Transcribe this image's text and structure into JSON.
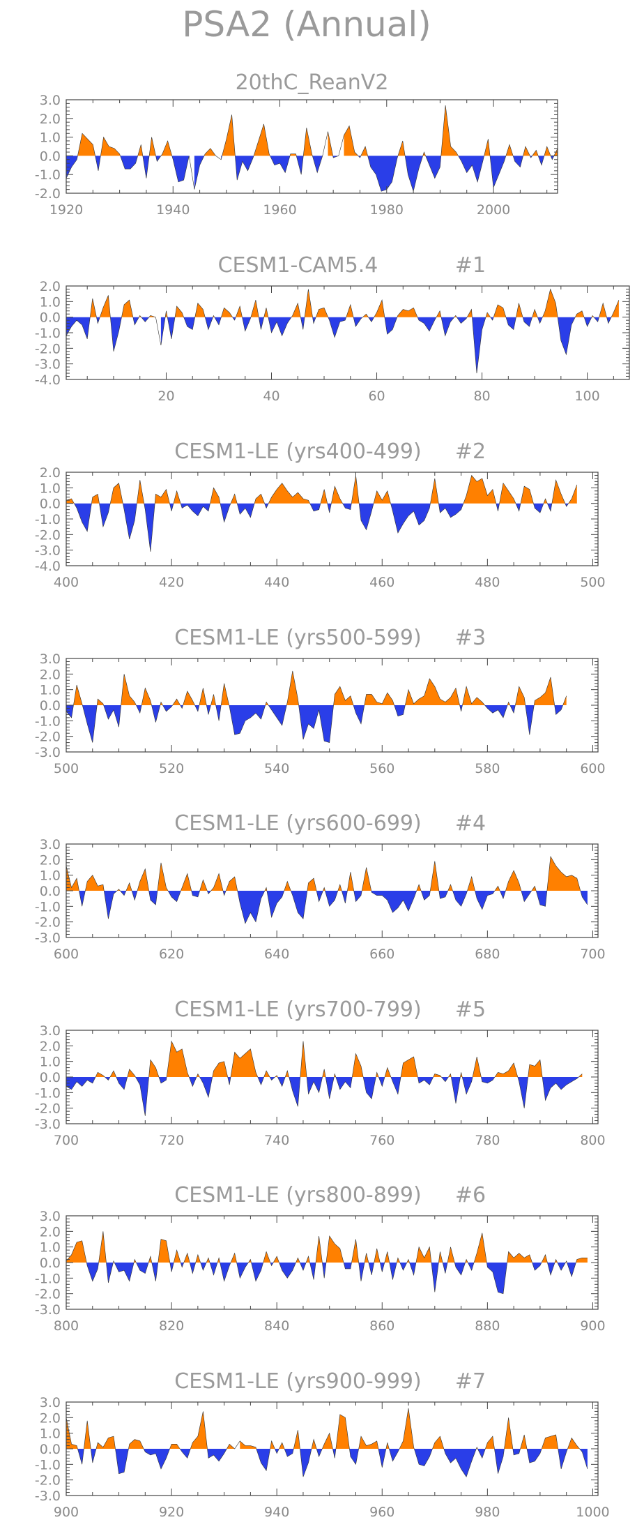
{
  "figure_title": "PSA2 (Annual)",
  "colors": {
    "positive": "#ff8000",
    "negative": "#2a3ee8",
    "text": "#9a9a9a",
    "axis": "#444444"
  },
  "chart_data": [
    {
      "type": "area",
      "title": "20thC_ReanV2",
      "run_label": "",
      "ylim": [
        -2.0,
        3.0
      ],
      "yticks": [
        "3.0",
        "2.0",
        "1.0",
        "0.0",
        "-1.0",
        "-2.0"
      ],
      "xlim": [
        1920,
        2012
      ],
      "xticks": [
        1920,
        1940,
        1960,
        1980,
        2000
      ],
      "x_start": 1920,
      "values": [
        -1.2,
        -0.6,
        -0.2,
        1.2,
        0.9,
        0.6,
        -0.8,
        1.0,
        0.5,
        0.4,
        0.1,
        -0.7,
        -0.7,
        -0.4,
        0.6,
        -1.2,
        1.0,
        -0.3,
        0.1,
        0.8,
        -0.2,
        -1.4,
        -1.3,
        0.0,
        -1.8,
        -0.5,
        0.1,
        0.4,
        0.0,
        -0.2,
        0.9,
        2.2,
        -1.3,
        -0.3,
        -0.8,
        -0.1,
        0.8,
        1.7,
        0.1,
        -0.5,
        -0.4,
        -0.9,
        0.1,
        0.1,
        -1.0,
        1.5,
        0.1,
        -0.9,
        0.0,
        1.3,
        -0.1,
        0.0,
        1.1,
        1.6,
        0.2,
        -0.1,
        0.5,
        -0.6,
        -1.0,
        -1.9,
        -1.8,
        -1.4,
        -0.1,
        0.8,
        -1.0,
        -1.9,
        -0.7,
        0.2,
        -0.5,
        -1.2,
        -0.6,
        2.7,
        0.5,
        0.2,
        -0.3,
        -0.9,
        -0.5,
        -1.4,
        -0.3,
        0.9,
        -1.7,
        -1.0,
        -0.3,
        0.6,
        -0.3,
        -0.6,
        0.5,
        -0.1,
        0.3,
        -0.5,
        0.5,
        -0.2,
        0.4
      ]
    },
    {
      "type": "area",
      "title": "CESM1-CAM5.4",
      "run_label": "#1",
      "ylim": [
        -4.0,
        2.0
      ],
      "yticks": [
        "2.0",
        "1.0",
        "0.0",
        "-1.0",
        "-2.0",
        "-3.0",
        "-4.0"
      ],
      "xlim": [
        1,
        108
      ],
      "xticks": [
        20,
        40,
        60,
        80,
        100
      ],
      "x_start": 1,
      "values": [
        -1.2,
        -0.6,
        -0.2,
        -0.5,
        -1.4,
        1.2,
        -0.4,
        0.6,
        1.4,
        -2.2,
        -0.9,
        0.8,
        1.1,
        -0.5,
        0.1,
        -0.3,
        0.1,
        0.0,
        -1.8,
        0.4,
        -1.4,
        0.7,
        0.3,
        -0.6,
        -0.8,
        0.9,
        0.5,
        -0.8,
        0.1,
        -0.5,
        0.6,
        0.3,
        -0.2,
        0.7,
        -0.9,
        -0.1,
        1.1,
        -0.8,
        0.6,
        -1.0,
        -0.3,
        -1.2,
        -0.4,
        0.1,
        0.9,
        -0.8,
        1.8,
        -0.4,
        0.5,
        0.6,
        -0.2,
        -1.3,
        -0.3,
        -0.2,
        0.8,
        -0.6,
        -0.1,
        0.2,
        -0.3,
        0.3,
        1.1,
        -1.1,
        -0.8,
        0.1,
        0.5,
        0.4,
        0.6,
        -0.2,
        -0.4,
        -0.9,
        -0.2,
        0.4,
        -1.2,
        -0.3,
        0.1,
        -0.4,
        -0.1,
        0.5,
        -3.6,
        -0.8,
        0.3,
        -0.2,
        0.8,
        0.6,
        -0.5,
        -0.8,
        0.9,
        -0.3,
        -0.6,
        0.5,
        -0.4,
        0.4,
        1.8,
        0.9,
        -1.5,
        -2.4,
        -0.5,
        0.2,
        0.4,
        -0.6,
        0.1,
        -0.3,
        0.9,
        -0.4,
        0.3,
        1.1
      ]
    },
    {
      "type": "area",
      "title": "CESM1-LE (yrs400-499)",
      "run_label": "#2",
      "ylim": [
        -4.0,
        2.0
      ],
      "yticks": [
        "2.0",
        "1.0",
        "0.0",
        "-1.0",
        "-2.0",
        "-3.0",
        "-4.0"
      ],
      "xlim": [
        400,
        501
      ],
      "xticks": [
        400,
        420,
        440,
        460,
        480,
        500
      ],
      "x_start": 400,
      "values": [
        0.2,
        0.3,
        -0.3,
        -1.2,
        -1.8,
        0.4,
        0.6,
        -1.5,
        -0.6,
        1.0,
        1.3,
        -0.4,
        -2.3,
        -1.1,
        1.5,
        -0.4,
        -3.1,
        0.6,
        0.4,
        0.9,
        -0.5,
        0.8,
        -0.3,
        -0.1,
        -0.5,
        -0.8,
        -0.2,
        -0.5,
        1.0,
        0.4,
        -1.2,
        -0.2,
        0.6,
        -0.7,
        -0.3,
        -0.9,
        0.3,
        0.6,
        -0.3,
        0.4,
        0.9,
        1.3,
        0.8,
        0.4,
        0.7,
        0.3,
        0.2,
        -0.5,
        -0.4,
        0.9,
        -0.6,
        1.1,
        0.3,
        -0.3,
        -0.4,
        1.8,
        -1.1,
        -1.7,
        -0.5,
        0.8,
        0.2,
        0.8,
        -0.5,
        -1.9,
        -1.3,
        -0.8,
        -0.5,
        -1.4,
        -1.1,
        -0.3,
        1.6,
        -0.6,
        -0.3,
        -0.9,
        -0.7,
        -0.4,
        0.5,
        1.8,
        1.4,
        1.6,
        0.5,
        0.9,
        -0.5,
        1.3,
        0.8,
        0.3,
        -0.5,
        1.1,
        0.9,
        -0.3,
        -0.6,
        0.3,
        -0.5,
        1.5,
        0.6,
        -0.2,
        0.3,
        1.2
      ]
    },
    {
      "type": "area",
      "title": "CESM1-LE (yrs500-599)",
      "run_label": "#3",
      "ylim": [
        -3.0,
        3.0
      ],
      "yticks": [
        "3.0",
        "2.0",
        "1.0",
        "0.0",
        "-1.0",
        "-2.0",
        "-3.0"
      ],
      "xlim": [
        500,
        601
      ],
      "xticks": [
        500,
        520,
        540,
        560,
        580,
        600
      ],
      "x_start": 500,
      "values": [
        -0.4,
        -0.8,
        1.3,
        0.1,
        -1.2,
        -2.4,
        0.4,
        0.1,
        -0.9,
        -0.3,
        -1.4,
        2.0,
        0.6,
        0.2,
        -0.5,
        1.1,
        0.3,
        -1.1,
        0.2,
        -0.4,
        -0.1,
        0.4,
        -0.2,
        0.9,
        0.3,
        -0.4,
        1.1,
        -0.6,
        0.7,
        -1.0,
        1.4,
        -0.1,
        -1.9,
        -1.8,
        -1.0,
        -0.8,
        -0.5,
        -0.9,
        0.2,
        -0.3,
        -0.8,
        -1.3,
        0.2,
        2.2,
        0.4,
        -2.2,
        -1.2,
        -1.5,
        -0.3,
        -2.3,
        -2.4,
        0.7,
        1.2,
        0.3,
        0.6,
        -0.5,
        -1.2,
        0.7,
        0.7,
        0.2,
        0.1,
        0.8,
        0.3,
        -0.7,
        -0.6,
        1.0,
        0.1,
        0.4,
        0.6,
        1.7,
        1.2,
        0.4,
        0.2,
        0.5,
        1.1,
        -0.4,
        1.2,
        0.1,
        0.5,
        0.2,
        -0.2,
        -0.5,
        -0.3,
        -0.8,
        0.2,
        -0.5,
        1.2,
        0.5,
        -1.9,
        0.3,
        0.5,
        0.8,
        1.8,
        -0.6,
        -0.3,
        0.6
      ]
    },
    {
      "type": "area",
      "title": "CESM1-LE (yrs600-699)",
      "run_label": "#4",
      "ylim": [
        -3.0,
        3.0
      ],
      "yticks": [
        "3.0",
        "2.0",
        "1.0",
        "0.0",
        "-1.0",
        "-2.0",
        "-3.0"
      ],
      "xlim": [
        600,
        701
      ],
      "xticks": [
        600,
        620,
        640,
        660,
        680,
        700
      ],
      "x_start": 600,
      "values": [
        1.6,
        0.2,
        0.8,
        -1.0,
        0.6,
        1.0,
        0.3,
        0.4,
        -1.8,
        -0.2,
        0.1,
        -0.3,
        0.5,
        -0.6,
        0.6,
        1.4,
        -0.6,
        -0.9,
        1.8,
        0.2,
        -0.4,
        -0.7,
        0.2,
        1.1,
        -0.3,
        -0.4,
        0.7,
        -0.2,
        0.2,
        1.1,
        -0.3,
        0.6,
        0.9,
        -0.8,
        -2.1,
        -1.4,
        -2.0,
        -0.5,
        0.2,
        -1.7,
        -0.8,
        -0.4,
        0.6,
        -0.3,
        -1.4,
        -1.8,
        0.5,
        0.8,
        -0.7,
        0.2,
        -1.0,
        -0.6,
        0.4,
        -0.8,
        1.2,
        -0.7,
        -0.3,
        1.5,
        -0.1,
        -0.3,
        -0.3,
        -0.6,
        -1.4,
        -1.1,
        -0.6,
        -1.3,
        -0.5,
        0.4,
        -0.6,
        -0.3,
        1.9,
        -0.5,
        -0.4,
        0.4,
        -0.6,
        -1.0,
        -0.2,
        0.9,
        -0.5,
        -1.2,
        -0.3,
        -0.2,
        0.3,
        -0.5,
        0.6,
        1.3,
        0.5,
        -0.7,
        -0.2,
        0.3,
        -0.9,
        -1.0,
        2.2,
        1.6,
        1.2,
        0.9,
        1.0,
        0.8,
        -0.4,
        -0.9
      ]
    },
    {
      "type": "area",
      "title": "CESM1-LE (yrs700-799)",
      "run_label": "#5",
      "ylim": [
        -3.0,
        3.0
      ],
      "yticks": [
        "3.0",
        "2.0",
        "1.0",
        "0.0",
        "-1.0",
        "-2.0",
        "-3.0"
      ],
      "xlim": [
        700,
        801
      ],
      "xticks": [
        700,
        720,
        740,
        760,
        780,
        800
      ],
      "x_start": 700,
      "values": [
        -0.6,
        -0.8,
        -0.3,
        -0.6,
        -0.2,
        -0.4,
        0.3,
        0.1,
        -0.2,
        0.4,
        -0.4,
        -0.8,
        0.5,
        0.1,
        -0.5,
        -2.5,
        1.1,
        0.6,
        -0.4,
        -0.2,
        2.3,
        1.6,
        1.8,
        0.3,
        -0.6,
        0.2,
        -0.4,
        -1.3,
        0.4,
        0.9,
        1.0,
        -0.5,
        1.6,
        1.2,
        1.5,
        1.8,
        0.3,
        -0.5,
        0.4,
        -0.2,
        0.1,
        -0.6,
        0.4,
        -0.9,
        -1.9,
        2.3,
        -1.1,
        -0.3,
        -1.0,
        0.5,
        -1.4,
        0.2,
        -0.8,
        -0.3,
        -0.7,
        1.5,
        0.7,
        -1.0,
        -1.4,
        0.3,
        -0.6,
        0.6,
        -0.3,
        -1.1,
        0.9,
        1.1,
        1.3,
        -0.4,
        -0.2,
        -0.5,
        0.2,
        0.1,
        -0.3,
        0.2,
        -1.7,
        0.3,
        -1.1,
        -0.3,
        1.3,
        -0.3,
        -0.4,
        -0.2,
        0.3,
        0.2,
        0.4,
        0.9,
        -0.3,
        -2.0,
        0.8,
        0.7,
        1.1,
        -1.5,
        -0.7,
        -0.4,
        -0.8,
        -0.5,
        -0.3,
        -0.1,
        0.2
      ]
    },
    {
      "type": "area",
      "title": "CESM1-LE (yrs800-899)",
      "run_label": "#6",
      "ylim": [
        -3.0,
        3.0
      ],
      "yticks": [
        "3.0",
        "2.0",
        "1.0",
        "0.0",
        "-1.0",
        "-2.0",
        "-3.0"
      ],
      "xlim": [
        800,
        901
      ],
      "xticks": [
        800,
        820,
        840,
        860,
        880,
        900
      ],
      "x_start": 800,
      "values": [
        0.1,
        0.5,
        1.3,
        1.4,
        -0.2,
        -1.2,
        -0.4,
        2.0,
        -1.3,
        0.1,
        -0.6,
        -0.5,
        -1.2,
        0.2,
        -0.5,
        -0.7,
        0.4,
        -1.2,
        1.5,
        1.4,
        -0.6,
        0.8,
        -0.3,
        0.6,
        -0.7,
        0.5,
        -0.5,
        0.3,
        -0.8,
        0.3,
        -1.2,
        -0.2,
        0.6,
        -1.0,
        -0.3,
        0.2,
        -1.2,
        -0.5,
        0.7,
        -0.2,
        0.4,
        -0.5,
        -1.0,
        -0.5,
        0.3,
        -0.5,
        0.4,
        -1.1,
        1.7,
        -1.0,
        1.7,
        1.2,
        0.9,
        -0.4,
        -0.4,
        1.5,
        -1.2,
        0.6,
        -0.8,
        0.9,
        -0.6,
        0.7,
        -1.1,
        0.3,
        -0.5,
        0.2,
        -0.8,
        1.0,
        0.3,
        1.0,
        -1.9,
        0.7,
        -0.7,
        1.0,
        -0.3,
        -0.8,
        0.2,
        -0.5,
        0.6,
        1.9,
        -0.3,
        -0.6,
        -1.9,
        -2.0,
        0.7,
        0.3,
        0.6,
        0.3,
        0.5,
        -0.5,
        -0.2,
        0.5,
        -0.8,
        0.2,
        -0.5,
        0.1,
        -0.9,
        0.2,
        0.3,
        0.3
      ]
    },
    {
      "type": "area",
      "title": "CESM1-LE (yrs900-999)",
      "run_label": "#7",
      "ylim": [
        -3.0,
        3.0
      ],
      "yticks": [
        "3.0",
        "2.0",
        "1.0",
        "0.0",
        "-1.0",
        "-2.0",
        "-3.0"
      ],
      "xlim": [
        900,
        1001
      ],
      "xticks": [
        900,
        920,
        940,
        960,
        980,
        1000
      ],
      "x_start": 900,
      "values": [
        2.0,
        0.3,
        0.2,
        -1.0,
        1.8,
        -0.9,
        0.4,
        0.1,
        0.7,
        0.8,
        -1.6,
        -1.5,
        0.3,
        0.6,
        0.5,
        -0.2,
        -0.4,
        -0.3,
        -1.3,
        -0.6,
        0.3,
        0.3,
        -0.2,
        -0.6,
        0.4,
        0.8,
        2.4,
        -0.6,
        -0.4,
        -0.8,
        -0.3,
        0.3,
        0.0,
        0.5,
        0.2,
        0.2,
        0.1,
        -0.9,
        -1.4,
        0.5,
        -0.3,
        0.4,
        -0.5,
        -0.3,
        1.2,
        -1.8,
        -0.9,
        0.6,
        -0.5,
        0.3,
        1.0,
        -0.6,
        2.2,
        2.0,
        -0.5,
        -1.0,
        0.8,
        0.2,
        0.3,
        0.5,
        -1.2,
        0.4,
        -0.8,
        -0.2,
        0.5,
        2.6,
        0.1,
        -1.0,
        -1.1,
        -0.5,
        0.4,
        0.8,
        -0.3,
        -0.9,
        -0.6,
        -1.3,
        -1.8,
        -0.8,
        0.1,
        -0.6,
        0.4,
        0.8,
        -1.6,
        -0.5,
        2.0,
        -0.4,
        -0.3,
        0.9,
        -0.9,
        -0.8,
        -0.3,
        0.7,
        0.8,
        0.9,
        -1.3,
        -0.2,
        0.7,
        0.2,
        -0.2,
        -1.3
      ]
    }
  ]
}
